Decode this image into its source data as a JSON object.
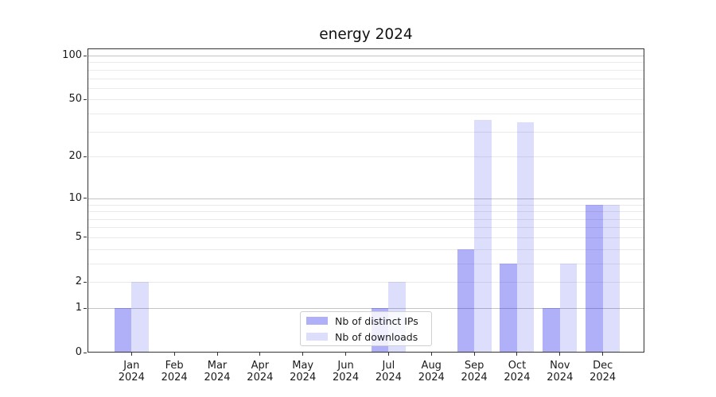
{
  "chart_data": {
    "type": "bar",
    "title": "energy 2024",
    "categories": [
      "Jan",
      "Feb",
      "Mar",
      "Apr",
      "May",
      "Jun",
      "Jul",
      "Aug",
      "Sep",
      "Oct",
      "Nov",
      "Dec"
    ],
    "year": "2024",
    "series": [
      {
        "name": "Nb of distinct IPs",
        "color": "rgba(30,30,235,0.35)",
        "color_solid": "#b0b0f8",
        "values": [
          1,
          0,
          0,
          0,
          0,
          0,
          1,
          0,
          4,
          3,
          1,
          9
        ]
      },
      {
        "name": "Nb of downloads",
        "color": "rgba(30,30,235,0.15)",
        "color_solid": "#dddcfa",
        "values": [
          2,
          0,
          0,
          0,
          0,
          0,
          2,
          0,
          36,
          35,
          3,
          9
        ]
      }
    ],
    "y_axis": {
      "scale": "log1p",
      "ylim": [
        0,
        112
      ],
      "tick_values": [
        0,
        1,
        2,
        5,
        10,
        20,
        50,
        100
      ],
      "major_gridlines": [
        1,
        10,
        100
      ],
      "minor_gridlines": [
        2,
        3,
        4,
        5,
        6,
        7,
        8,
        9,
        20,
        30,
        40,
        50,
        60,
        70,
        80,
        90
      ]
    },
    "grid": true,
    "legend_position": "lower-center",
    "colors": {
      "major_grid": "#c4c4c4",
      "minor_grid": "#eaeaea",
      "axis": "#333333",
      "text": "#1a1a1a",
      "background": "#ffffff"
    }
  }
}
